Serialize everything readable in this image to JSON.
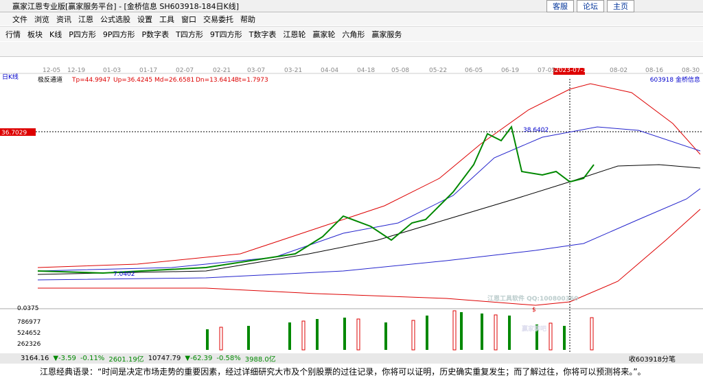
{
  "title_bar": {
    "title": "赢家江恩专业版[赢家服务平台] - [金桥信息  SH603918-184日K线]",
    "links": [
      "客服",
      "论坛",
      "主页"
    ]
  },
  "menu": [
    "文件",
    "浏览",
    "资讯",
    "江恩",
    "公式选股",
    "设置",
    "工具",
    "窗口",
    "交易委托",
    "帮助"
  ],
  "toolbar": [
    "行情",
    "板块",
    "K线",
    "P四方形",
    "9P四方形",
    "P数字表",
    "T四方形",
    "9T四方形",
    "T数字表",
    "江恩轮",
    "赢家轮",
    "六角形",
    "赢家服务"
  ],
  "date_axis": [
    "12-05",
    "12-19",
    "01-03",
    "01-17",
    "02-07",
    "02-21",
    "03-07",
    "03-21",
    "04-04",
    "04-18",
    "05-08",
    "05-22",
    "06-05",
    "06-19",
    "07-05",
    "2023-07-14",
    "08-02",
    "08-16",
    "08-30"
  ],
  "chart": {
    "period": "日K线",
    "indicator": "极反通道",
    "params": [
      "Tp=44.9947",
      "Up=36.4245",
      "Md=26.6581",
      "Dn=13.6414",
      "Bt=1.7973"
    ],
    "stock": "603918  金桥信息",
    "cursor_price": "36.7029",
    "high_label": "38.6402",
    "low_label": "7.0402",
    "scale_low": "0.0375",
    "marker": "$",
    "volume_ticks": [
      "786977",
      "524652",
      "262326"
    ],
    "watermark": [
      "江恩工具软件  QQ:100800360",
      "赢家聊吧"
    ]
  },
  "status_bar": {
    "sh": [
      "3164.16",
      "▼-3.59",
      "-0.11%",
      "2601.19亿"
    ],
    "sz": [
      "10747.79",
      "▼-62.39",
      "-0.58%",
      "3988.0亿"
    ],
    "right": "收603918分笔"
  },
  "quote": "江恩经典语录：“时间是决定市场走势的重要因素，经过详细研究大市及个别股票的过往记录，你将可以证明，历史确实重复发生；而了解过往，你将可以预测将来。”。"
}
